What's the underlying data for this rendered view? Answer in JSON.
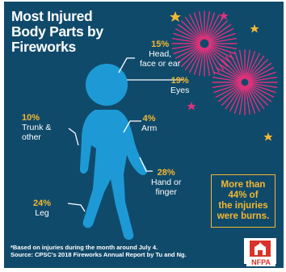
{
  "title": {
    "line1": "Most Injured",
    "line2": "Body Parts by",
    "line3": "Fireworks"
  },
  "labels": {
    "head": {
      "pct": "15%",
      "text1": "Head,",
      "text2": "face or ear"
    },
    "eyes": {
      "pct": "19%",
      "text1": "Eyes"
    },
    "trunk": {
      "pct": "10%",
      "text1": "Trunk &",
      "text2": "other"
    },
    "arm": {
      "pct": "4%",
      "text1": "Arm"
    },
    "hand": {
      "pct": "28%",
      "text1": "Hand or",
      "text2": "finger"
    },
    "leg": {
      "pct": "24%",
      "text1": "Leg"
    }
  },
  "burns_box": {
    "line1": "More than",
    "line2": "44% of",
    "line3": "the injuries",
    "line4": "were burns."
  },
  "footnote": {
    "line1": "*Based on injuries during the month around July 4.",
    "line2": "Source: CPSC's 2018 Fireworks Annual Report by Tu and Ng."
  },
  "logo": {
    "text": "NFPA"
  },
  "colors": {
    "background": "#104a6b",
    "figure": "#1d9ad6",
    "accent": "#f5b830",
    "firework_pink": "#e0317a",
    "logo_red": "#d9342b"
  },
  "icons": [
    "firework-burst-icon",
    "star-icon",
    "nfpa-logo-icon"
  ]
}
